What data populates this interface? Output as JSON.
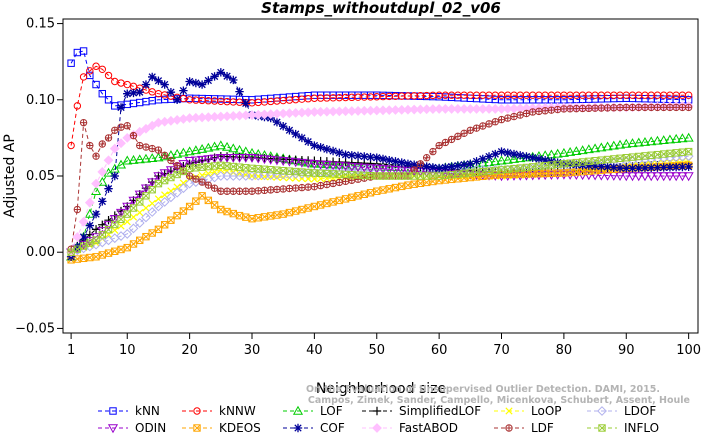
{
  "chart_data": {
    "type": "line",
    "title": "Stamps_withoutdupl_02_v06",
    "xlabel": "Neighborhood size",
    "ylabel": "Adjusted AP",
    "xlim": [
      1,
      100
    ],
    "ylim": [
      -0.05,
      0.15
    ],
    "x_ticks": [
      1,
      10,
      20,
      30,
      40,
      50,
      60,
      70,
      80,
      90,
      100
    ],
    "y_ticks": [
      -0.05,
      0.0,
      0.05,
      0.1,
      0.15
    ],
    "y_tick_labels": [
      "−0.05",
      "0.00",
      "0.05",
      "0.10",
      "0.15"
    ],
    "grid": false,
    "legend_position": "bottom",
    "watermark_lines": [
      "Campos, Zimek, Sander, Campello, Micenkova, Schubert, Assent, Houle",
      "On the Evaluation of Unsupervised Outlier Detection. DAMI, 2015."
    ],
    "series": [
      {
        "name": "kNN",
        "color": "#0000ff",
        "marker": "square",
        "points": [
          [
            1,
            0.124
          ],
          [
            2,
            0.131
          ],
          [
            3,
            0.132
          ],
          [
            4,
            0.116
          ],
          [
            5,
            0.11
          ],
          [
            6,
            0.104
          ],
          [
            7,
            0.1
          ],
          [
            8,
            0.096
          ],
          [
            10,
            0.097
          ],
          [
            15,
            0.1
          ],
          [
            20,
            0.101
          ],
          [
            30,
            0.1
          ],
          [
            40,
            0.103
          ],
          [
            50,
            0.103
          ],
          [
            60,
            0.102
          ],
          [
            70,
            0.1
          ],
          [
            80,
            0.1
          ],
          [
            90,
            0.101
          ],
          [
            100,
            0.1
          ]
        ]
      },
      {
        "name": "kNNW",
        "color": "#ff0000",
        "marker": "circle",
        "points": [
          [
            1,
            0.07
          ],
          [
            2,
            0.096
          ],
          [
            3,
            0.115
          ],
          [
            4,
            0.119
          ],
          [
            5,
            0.122
          ],
          [
            6,
            0.12
          ],
          [
            8,
            0.112
          ],
          [
            10,
            0.11
          ],
          [
            15,
            0.104
          ],
          [
            20,
            0.1
          ],
          [
            30,
            0.098
          ],
          [
            40,
            0.101
          ],
          [
            50,
            0.102
          ],
          [
            60,
            0.103
          ],
          [
            70,
            0.103
          ],
          [
            80,
            0.103
          ],
          [
            90,
            0.103
          ],
          [
            100,
            0.103
          ]
        ]
      },
      {
        "name": "LOF",
        "color": "#00cc00",
        "marker": "triangle-up",
        "points": [
          [
            1,
            -0.003
          ],
          [
            3,
            0.01
          ],
          [
            5,
            0.04
          ],
          [
            7,
            0.052
          ],
          [
            10,
            0.06
          ],
          [
            15,
            0.062
          ],
          [
            20,
            0.066
          ],
          [
            25,
            0.07
          ],
          [
            30,
            0.065
          ],
          [
            40,
            0.058
          ],
          [
            50,
            0.056
          ],
          [
            60,
            0.055
          ],
          [
            70,
            0.06
          ],
          [
            80,
            0.065
          ],
          [
            90,
            0.071
          ],
          [
            100,
            0.075
          ]
        ]
      },
      {
        "name": "SimplifiedLOF",
        "color": "#000000",
        "marker": "plus",
        "points": [
          [
            1,
            0.0
          ],
          [
            3,
            0.008
          ],
          [
            5,
            0.015
          ],
          [
            10,
            0.03
          ],
          [
            15,
            0.05
          ],
          [
            20,
            0.058
          ],
          [
            25,
            0.063
          ],
          [
            30,
            0.062
          ],
          [
            40,
            0.06
          ],
          [
            50,
            0.058
          ],
          [
            60,
            0.055
          ],
          [
            70,
            0.052
          ],
          [
            80,
            0.053
          ],
          [
            90,
            0.056
          ],
          [
            100,
            0.058
          ]
        ]
      },
      {
        "name": "LoOP",
        "color": "#ffff00",
        "marker": "x",
        "points": [
          [
            1,
            0.0
          ],
          [
            5,
            0.006
          ],
          [
            10,
            0.02
          ],
          [
            15,
            0.035
          ],
          [
            20,
            0.048
          ],
          [
            25,
            0.054
          ],
          [
            30,
            0.05
          ],
          [
            40,
            0.048
          ],
          [
            50,
            0.05
          ],
          [
            60,
            0.05
          ],
          [
            70,
            0.05
          ],
          [
            80,
            0.052
          ],
          [
            90,
            0.056
          ],
          [
            100,
            0.06
          ]
        ]
      },
      {
        "name": "LDOF",
        "color": "#b0b0ee",
        "marker": "diamond",
        "points": [
          [
            1,
            0.0
          ],
          [
            5,
            0.005
          ],
          [
            10,
            0.012
          ],
          [
            15,
            0.03
          ],
          [
            20,
            0.045
          ],
          [
            25,
            0.05
          ],
          [
            30,
            0.05
          ],
          [
            40,
            0.052
          ],
          [
            50,
            0.055
          ],
          [
            60,
            0.055
          ],
          [
            70,
            0.054
          ],
          [
            80,
            0.056
          ],
          [
            90,
            0.06
          ],
          [
            100,
            0.063
          ]
        ]
      },
      {
        "name": "ODIN",
        "color": "#9900cc",
        "marker": "triangle-down",
        "points": [
          [
            1,
            0.0
          ],
          [
            5,
            0.01
          ],
          [
            10,
            0.03
          ],
          [
            15,
            0.05
          ],
          [
            20,
            0.06
          ],
          [
            25,
            0.062
          ],
          [
            30,
            0.062
          ],
          [
            40,
            0.058
          ],
          [
            50,
            0.055
          ],
          [
            60,
            0.052
          ],
          [
            70,
            0.05
          ],
          [
            80,
            0.051
          ],
          [
            90,
            0.05
          ],
          [
            100,
            0.05
          ]
        ]
      },
      {
        "name": "KDEOS",
        "color": "#ffa500",
        "marker": "square-x",
        "points": [
          [
            1,
            -0.005
          ],
          [
            5,
            -0.003
          ],
          [
            10,
            0.003
          ],
          [
            15,
            0.015
          ],
          [
            20,
            0.03
          ],
          [
            22,
            0.037
          ],
          [
            25,
            0.028
          ],
          [
            28,
            0.024
          ],
          [
            30,
            0.022
          ],
          [
            35,
            0.025
          ],
          [
            40,
            0.03
          ],
          [
            45,
            0.035
          ],
          [
            50,
            0.04
          ],
          [
            55,
            0.044
          ],
          [
            60,
            0.047
          ],
          [
            70,
            0.051
          ],
          [
            80,
            0.052
          ],
          [
            90,
            0.055
          ],
          [
            100,
            0.057
          ]
        ]
      },
      {
        "name": "COF",
        "color": "#000099",
        "marker": "asterisk",
        "points": [
          [
            1,
            -0.003
          ],
          [
            3,
            0.01
          ],
          [
            5,
            0.025
          ],
          [
            8,
            0.05
          ],
          [
            9,
            0.095
          ],
          [
            10,
            0.104
          ],
          [
            12,
            0.105
          ],
          [
            14,
            0.115
          ],
          [
            16,
            0.11
          ],
          [
            18,
            0.1
          ],
          [
            20,
            0.112
          ],
          [
            22,
            0.11
          ],
          [
            25,
            0.118
          ],
          [
            27,
            0.113
          ],
          [
            30,
            0.09
          ],
          [
            33,
            0.088
          ],
          [
            36,
            0.08
          ],
          [
            40,
            0.07
          ],
          [
            45,
            0.064
          ],
          [
            50,
            0.062
          ],
          [
            55,
            0.058
          ],
          [
            60,
            0.055
          ],
          [
            65,
            0.058
          ],
          [
            70,
            0.066
          ],
          [
            75,
            0.062
          ],
          [
            80,
            0.058
          ],
          [
            90,
            0.055
          ],
          [
            100,
            0.056
          ]
        ]
      },
      {
        "name": "FastABOD",
        "color": "#ffc0ff",
        "marker": "diamond-filled",
        "points": [
          [
            1,
            0.0
          ],
          [
            3,
            0.02
          ],
          [
            5,
            0.045
          ],
          [
            8,
            0.068
          ],
          [
            10,
            0.075
          ],
          [
            15,
            0.085
          ],
          [
            20,
            0.088
          ],
          [
            30,
            0.09
          ],
          [
            40,
            0.092
          ],
          [
            50,
            0.093
          ],
          [
            60,
            0.094
          ],
          [
            70,
            0.094
          ],
          [
            80,
            0.095
          ],
          [
            90,
            0.095
          ],
          [
            100,
            0.096
          ]
        ]
      },
      {
        "name": "LDF",
        "color": "#aa3333",
        "marker": "circle-plus",
        "points": [
          [
            1,
            0.002
          ],
          [
            2,
            0.028
          ],
          [
            3,
            0.085
          ],
          [
            4,
            0.07
          ],
          [
            5,
            0.063
          ],
          [
            6,
            0.071
          ],
          [
            7,
            0.075
          ],
          [
            8,
            0.08
          ],
          [
            9,
            0.082
          ],
          [
            10,
            0.083
          ],
          [
            12,
            0.07
          ],
          [
            15,
            0.067
          ],
          [
            20,
            0.05
          ],
          [
            25,
            0.04
          ],
          [
            30,
            0.04
          ],
          [
            40,
            0.043
          ],
          [
            50,
            0.05
          ],
          [
            55,
            0.05
          ],
          [
            60,
            0.07
          ],
          [
            65,
            0.08
          ],
          [
            70,
            0.087
          ],
          [
            75,
            0.092
          ],
          [
            80,
            0.094
          ],
          [
            90,
            0.095
          ],
          [
            100,
            0.095
          ]
        ]
      },
      {
        "name": "INFLO",
        "color": "#99cc33",
        "marker": "square-x",
        "points": [
          [
            1,
            0.0
          ],
          [
            5,
            0.008
          ],
          [
            10,
            0.025
          ],
          [
            15,
            0.045
          ],
          [
            20,
            0.055
          ],
          [
            25,
            0.057
          ],
          [
            30,
            0.055
          ],
          [
            40,
            0.052
          ],
          [
            50,
            0.05
          ],
          [
            60,
            0.05
          ],
          [
            70,
            0.054
          ],
          [
            80,
            0.058
          ],
          [
            90,
            0.062
          ],
          [
            100,
            0.066
          ]
        ]
      }
    ]
  }
}
